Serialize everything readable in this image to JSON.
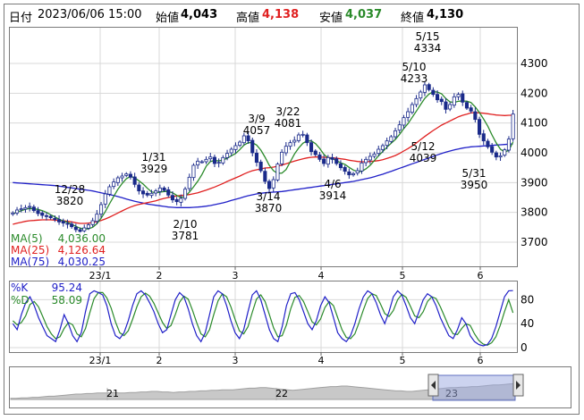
{
  "header": {
    "type_label": "日付",
    "datetime": "2023/06/06 15:00",
    "open_label": "始値",
    "open_value": "4,043",
    "high_label": "高値",
    "high_value": "4,138",
    "low_label": "安値",
    "low_value": "4,037",
    "close_label": "終値",
    "close_value": "4,130"
  },
  "colors": {
    "candle_up": "#ffffff",
    "candle_down": "#1a2a8a",
    "ma5": "#2a8a2a",
    "ma25": "#e02020",
    "ma75": "#2020c8",
    "k_line": "#2020c8",
    "d_line": "#2a8a2a",
    "high_text": "#e02020",
    "low_text": "#2a8a2a"
  },
  "chart_data": [
    {
      "type": "candlestick",
      "y_ticks": [
        "4300",
        "4200",
        "4100",
        "4000",
        "3900",
        "3800",
        "3700"
      ],
      "ylim": [
        3650,
        4400
      ],
      "x_ticks": [
        "23/1",
        "2",
        "3",
        "4",
        "5",
        "6"
      ],
      "legend": [
        {
          "label": "MA(5)",
          "value": "4,036.00"
        },
        {
          "label": "MA(25)",
          "value": "4,126.64"
        },
        {
          "label": "MA(75)",
          "value": "4,030.25"
        }
      ],
      "annotations": [
        {
          "date": "12/28",
          "value": "3820"
        },
        {
          "date": "1/31",
          "value": "3929"
        },
        {
          "date": "2/10",
          "value": "3781"
        },
        {
          "date": "3/9",
          "value": "4057"
        },
        {
          "date": "3/14",
          "value": "3870"
        },
        {
          "date": "3/22",
          "value": "4081"
        },
        {
          "date": "4/6",
          "value": "3914"
        },
        {
          "date": "5/10",
          "value": "4233"
        },
        {
          "date": "5/15",
          "value": "4334"
        },
        {
          "date": "5/12",
          "value": "4039"
        },
        {
          "date": "5/31",
          "value": "3950"
        }
      ],
      "closes": [
        3798,
        3808,
        3812,
        3816,
        3820,
        3806,
        3796,
        3790,
        3786,
        3782,
        3776,
        3768,
        3764,
        3760,
        3752,
        3742,
        3736,
        3748,
        3758,
        3772,
        3794,
        3826,
        3862,
        3886,
        3902,
        3916,
        3922,
        3929,
        3918,
        3894,
        3872,
        3862,
        3858,
        3864,
        3872,
        3882,
        3874,
        3858,
        3842,
        3836,
        3847,
        3878,
        3918,
        3958,
        3972,
        3970,
        3978,
        3986,
        3964,
        3968,
        3984,
        3998,
        4012,
        4024,
        4036,
        4057,
        4040,
        4000,
        3968,
        3940,
        3904,
        3880,
        3910,
        3962,
        4002,
        4022,
        4034,
        4042,
        4060,
        4062,
        4034,
        4004,
        3994,
        3978,
        3964,
        3984,
        3978,
        3964,
        3950,
        3938,
        3926,
        3930,
        3940,
        3966,
        3978,
        3988,
        3996,
        4012,
        4024,
        4040,
        4054,
        4074,
        4094,
        4118,
        4138,
        4162,
        4182,
        4204,
        4228,
        4212,
        4196,
        4178,
        4172,
        4146,
        4162,
        4188,
        4196,
        4170,
        4150,
        4140,
        4112,
        4062,
        4040,
        4020,
        4002,
        3986,
        3990,
        4010,
        4046,
        4130
      ],
      "ma5": [
        3795,
        3801,
        3806,
        3810,
        3813,
        3812,
        3810,
        3806,
        3800,
        3792,
        3785,
        3777,
        3771,
        3767,
        3760,
        3753,
        3747,
        3744,
        3745,
        3750,
        3762,
        3780,
        3803,
        3829,
        3854,
        3878,
        3897,
        3913,
        3921,
        3916,
        3906,
        3895,
        3881,
        3869,
        3866,
        3868,
        3870,
        3870,
        3866,
        3857,
        3850,
        3854,
        3868,
        3886,
        3905,
        3927,
        3955,
        3971,
        3974,
        3973,
        3976,
        3982,
        3990,
        3998,
        4011,
        4026,
        4034,
        4034,
        4026,
        4009,
        3985,
        3958,
        3940,
        3931,
        3932,
        3944,
        3970,
        3996,
        4016,
        4032,
        4040,
        4040,
        4031,
        4015,
        3995,
        3983,
        3980,
        3974,
        3966,
        3961,
        3951,
        3942,
        3937,
        3938,
        3946,
        3958,
        3974,
        3990,
        4004,
        4019,
        4032,
        4045,
        4062,
        4081,
        4098,
        4119,
        4140,
        4162,
        4183,
        4197,
        4205,
        4204,
        4198,
        4182,
        4171,
        4169,
        4173,
        4174,
        4173,
        4169,
        4154,
        4135,
        4113,
        4089,
        4060,
        4033,
        4012,
        4003,
        4008,
        4036
      ],
      "ma25": [
        3760,
        3764,
        3767,
        3770,
        3772,
        3773,
        3774,
        3775,
        3775,
        3775,
        3774,
        3773,
        3772,
        3770,
        3768,
        3765,
        3763,
        3763,
        3764,
        3766,
        3769,
        3773,
        3778,
        3784,
        3791,
        3798,
        3805,
        3812,
        3818,
        3823,
        3827,
        3830,
        3833,
        3836,
        3839,
        3843,
        3847,
        3850,
        3853,
        3855,
        3857,
        3858,
        3860,
        3863,
        3866,
        3870,
        3875,
        3880,
        3885,
        3891,
        3897,
        3904,
        3910,
        3916,
        3922,
        3929,
        3935,
        3940,
        3943,
        3946,
        3949,
        3950,
        3952,
        3955,
        3959,
        3963,
        3968,
        3972,
        3976,
        3980,
        3983,
        3985,
        3986,
        3986,
        3985,
        3984,
        3983,
        3982,
        3980,
        3978,
        3975,
        3973,
        3971,
        3970,
        3970,
        3971,
        3972,
        3974,
        3977,
        3981,
        3986,
        3991,
        3998,
        4006,
        4014,
        4023,
        4033,
        4044,
        4055,
        4065,
        4075,
        4084,
        4093,
        4100,
        4107,
        4114,
        4121,
        4126,
        4130,
        4134,
        4135,
        4134,
        4133,
        4131,
        4129,
        4127,
        4126,
        4125,
        4126,
        4126
      ],
      "ma75": [
        3900,
        3899,
        3898,
        3897,
        3896,
        3895,
        3894,
        3893,
        3892,
        3891,
        3890,
        3888,
        3886,
        3884,
        3882,
        3880,
        3878,
        3876,
        3874,
        3872,
        3869,
        3866,
        3863,
        3860,
        3857,
        3853,
        3849,
        3845,
        3841,
        3837,
        3834,
        3831,
        3828,
        3826,
        3824,
        3822,
        3820,
        3818,
        3817,
        3816,
        3816,
        3816,
        3816,
        3817,
        3818,
        3819,
        3821,
        3823,
        3826,
        3829,
        3832,
        3836,
        3840,
        3844,
        3848,
        3852,
        3856,
        3859,
        3862,
        3864,
        3866,
        3867,
        3868,
        3869,
        3870,
        3872,
        3874,
        3876,
        3878,
        3880,
        3882,
        3884,
        3886,
        3888,
        3890,
        3892,
        3894,
        3896,
        3898,
        3900,
        3902,
        3904,
        3907,
        3910,
        3913,
        3916,
        3920,
        3924,
        3928,
        3933,
        3938,
        3943,
        3948,
        3953,
        3958,
        3963,
        3968,
        3973,
        3978,
        3983,
        3988,
        3993,
        3998,
        4002,
        4006,
        4010,
        4013,
        4016,
        4018,
        4020,
        4021,
        4022,
        4023,
        4024,
        4025,
        4026,
        4027,
        4028,
        4029,
        4030
      ]
    },
    {
      "type": "line",
      "y_ticks": [
        "80",
        "40",
        "0"
      ],
      "ylim": [
        -5,
        110
      ],
      "x_ticks": [
        "23/1",
        "2",
        "3",
        "4",
        "5",
        "6"
      ],
      "series": [
        {
          "name": "%K",
          "value": "95.24",
          "values": [
            40,
            30,
            55,
            75,
            85,
            70,
            50,
            35,
            20,
            15,
            10,
            30,
            55,
            40,
            20,
            10,
            25,
            60,
            90,
            95,
            92,
            88,
            70,
            40,
            20,
            15,
            25,
            45,
            70,
            90,
            95,
            88,
            75,
            60,
            40,
            25,
            30,
            55,
            80,
            92,
            85,
            65,
            40,
            20,
            10,
            25,
            55,
            85,
            95,
            90,
            70,
            45,
            25,
            15,
            30,
            60,
            88,
            95,
            80,
            55,
            30,
            15,
            10,
            35,
            70,
            90,
            92,
            80,
            60,
            40,
            30,
            45,
            70,
            85,
            75,
            50,
            25,
            15,
            10,
            20,
            40,
            65,
            85,
            95,
            90,
            75,
            55,
            40,
            60,
            85,
            95,
            88,
            70,
            50,
            40,
            60,
            80,
            90,
            85,
            70,
            50,
            35,
            20,
            15,
            30,
            50,
            40,
            20,
            10,
            5,
            3,
            5,
            15,
            35,
            60,
            85,
            95,
            95.24
          ]
        },
        {
          "name": "%D",
          "value": "58.09",
          "values": [
            45,
            38,
            42,
            53,
            72,
            77,
            68,
            52,
            35,
            23,
            15,
            18,
            32,
            42,
            38,
            23,
            18,
            32,
            58,
            82,
            92,
            92,
            83,
            66,
            43,
            25,
            20,
            28,
            47,
            68,
            85,
            91,
            86,
            74,
            58,
            42,
            32,
            37,
            55,
            76,
            86,
            81,
            63,
            42,
            23,
            18,
            30,
            55,
            78,
            90,
            85,
            68,
            47,
            28,
            23,
            35,
            59,
            81,
            88,
            77,
            55,
            33,
            18,
            20,
            38,
            65,
            84,
            87,
            77,
            60,
            43,
            38,
            48,
            67,
            77,
            70,
            50,
            30,
            17,
            15,
            23,
            42,
            63,
            82,
            90,
            87,
            73,
            57,
            52,
            62,
            80,
            89,
            84,
            69,
            53,
            50,
            60,
            77,
            85,
            82,
            68,
            52,
            35,
            23,
            22,
            32,
            40,
            37,
            23,
            12,
            6,
            4,
            8,
            18,
            37,
            60,
            80,
            58.09
          ]
        }
      ]
    },
    {
      "type": "area",
      "x_ticks": [
        "21",
        "22",
        "23"
      ],
      "values": [
        2,
        2,
        3,
        3,
        4,
        4,
        5,
        6,
        6,
        7,
        8,
        9,
        10,
        10,
        11,
        11,
        12,
        12,
        12,
        13,
        12,
        12,
        13,
        13,
        14,
        14,
        15,
        15,
        14,
        14,
        13,
        14,
        14,
        15,
        15,
        16,
        16,
        17,
        17,
        18,
        18,
        18,
        19,
        20,
        21,
        21,
        22,
        22,
        21,
        20,
        19,
        18,
        17,
        18,
        19,
        20,
        21,
        22,
        23,
        24,
        24,
        25,
        25,
        24,
        23,
        22,
        21,
        20,
        19,
        18,
        17,
        16,
        16,
        15,
        15,
        16,
        17,
        18,
        19,
        20,
        21,
        22,
        22,
        23,
        23,
        24,
        24,
        25,
        26,
        27,
        27,
        28,
        29,
        30
      ]
    }
  ]
}
